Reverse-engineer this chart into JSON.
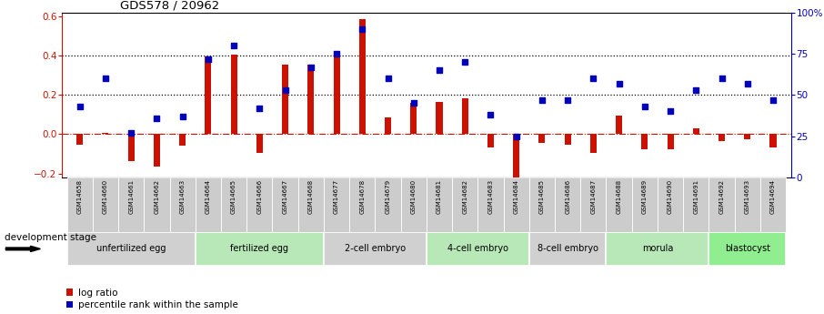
{
  "title": "GDS578 / 20962",
  "samples": [
    "GSM14658",
    "GSM14660",
    "GSM14661",
    "GSM14662",
    "GSM14663",
    "GSM14664",
    "GSM14665",
    "GSM14666",
    "GSM14667",
    "GSM14668",
    "GSM14677",
    "GSM14678",
    "GSM14679",
    "GSM14680",
    "GSM14681",
    "GSM14682",
    "GSM14683",
    "GSM14684",
    "GSM14685",
    "GSM14686",
    "GSM14687",
    "GSM14688",
    "GSM14689",
    "GSM14690",
    "GSM14691",
    "GSM14692",
    "GSM14693",
    "GSM14694"
  ],
  "log_ratio": [
    -0.055,
    0.005,
    -0.135,
    -0.165,
    -0.06,
    0.395,
    0.405,
    -0.095,
    0.355,
    0.355,
    0.415,
    0.585,
    0.085,
    0.16,
    0.165,
    0.185,
    -0.065,
    -0.225,
    -0.045,
    -0.055,
    -0.095,
    0.095,
    -0.075,
    -0.075,
    0.03,
    -0.035,
    -0.025,
    -0.065
  ],
  "percentile_rank": [
    43,
    60,
    27,
    36,
    37,
    72,
    80,
    42,
    53,
    67,
    75,
    90,
    60,
    45,
    65,
    70,
    38,
    25,
    47,
    47,
    60,
    57,
    43,
    40,
    53,
    60,
    57,
    47
  ],
  "stages": [
    {
      "label": "unfertilized egg",
      "start": 0,
      "end": 5,
      "color": "#d0d0d0"
    },
    {
      "label": "fertilized egg",
      "start": 5,
      "end": 10,
      "color": "#b8e8b8"
    },
    {
      "label": "2-cell embryo",
      "start": 10,
      "end": 14,
      "color": "#d0d0d0"
    },
    {
      "label": "4-cell embryo",
      "start": 14,
      "end": 18,
      "color": "#b8e8b8"
    },
    {
      "label": "8-cell embryo",
      "start": 18,
      "end": 21,
      "color": "#d0d0d0"
    },
    {
      "label": "morula",
      "start": 21,
      "end": 25,
      "color": "#b8e8b8"
    },
    {
      "label": "blastocyst",
      "start": 25,
      "end": 28,
      "color": "#90ee90"
    }
  ],
  "bar_color": "#cc1100",
  "scatter_color": "#0000bb",
  "ylim_left": [
    -0.22,
    0.62
  ],
  "ylim_right": [
    0,
    100
  ],
  "yticks_left": [
    -0.2,
    0.0,
    0.2,
    0.4,
    0.6
  ],
  "yticks_right": [
    0,
    25,
    50,
    75,
    100
  ],
  "background_color": "#ffffff",
  "legend_log_ratio": "log ratio",
  "legend_percentile": "percentile rank within the sample",
  "dev_stage_label": "development stage"
}
